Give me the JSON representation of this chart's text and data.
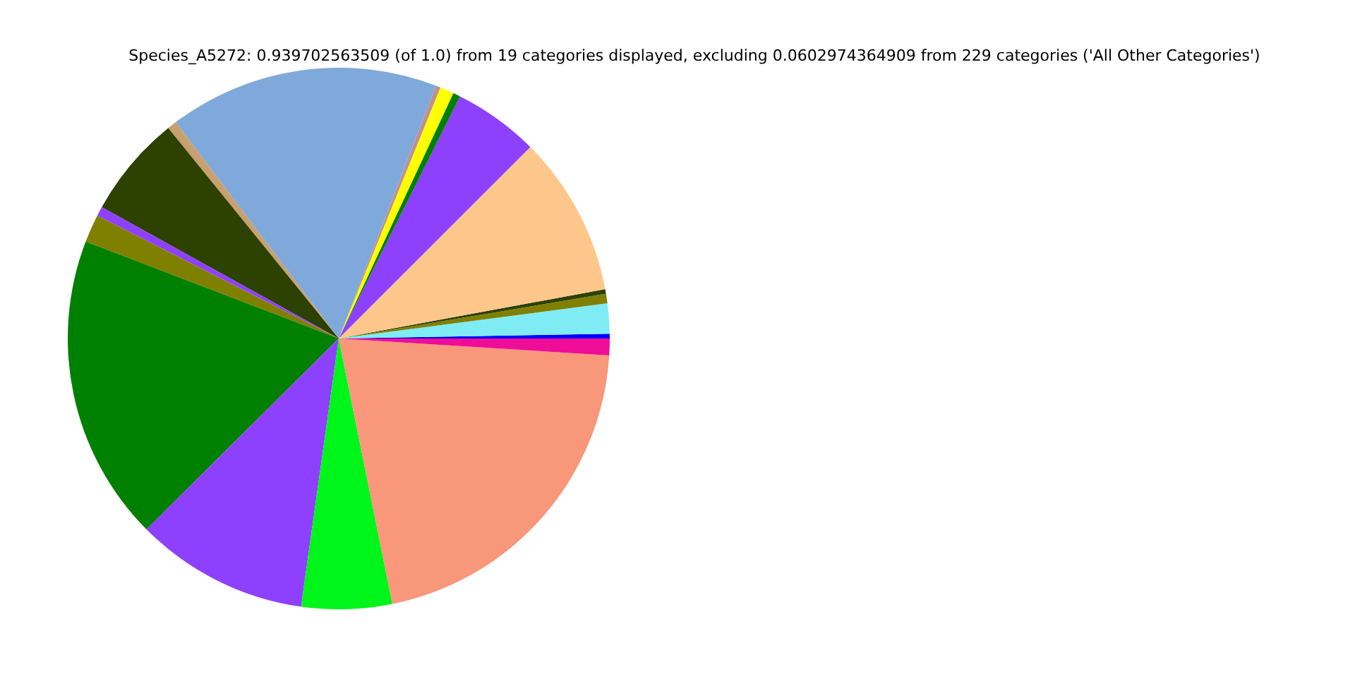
{
  "chart_data": {
    "type": "pie",
    "title": "Species_A5272: 0.939702563509 (of 1.0) from 19 categories displayed, excluding 0.0602974364909 from 229 categories ('All Other Categories')",
    "categories": [
      null,
      null,
      null,
      null,
      null,
      null,
      null,
      null,
      null,
      null,
      null,
      null,
      null,
      null,
      null,
      null,
      null,
      null,
      null
    ],
    "values": [
      0.28,
      1.8,
      0.56,
      0.28,
      9.58,
      5.11,
      0.44,
      0.83,
      0.28,
      16.11,
      0.56,
      6.11,
      0.56,
      1.67,
      18.28,
      10.33,
      5.39,
      20.83,
      1.0
    ],
    "colors": [
      "#0000ff",
      "#7fecf5",
      "#808000",
      "#2d4100",
      "#fdc78b",
      "#8e40ff",
      "#008000",
      "#ffff00",
      "#c09090",
      "#7fa9da",
      "#c8a070",
      "#2d4100",
      "#8e40ff",
      "#808000",
      "#008000",
      "#8e40ff",
      "#00f51a",
      "#f8977a",
      "#ee0d96"
    ]
  }
}
